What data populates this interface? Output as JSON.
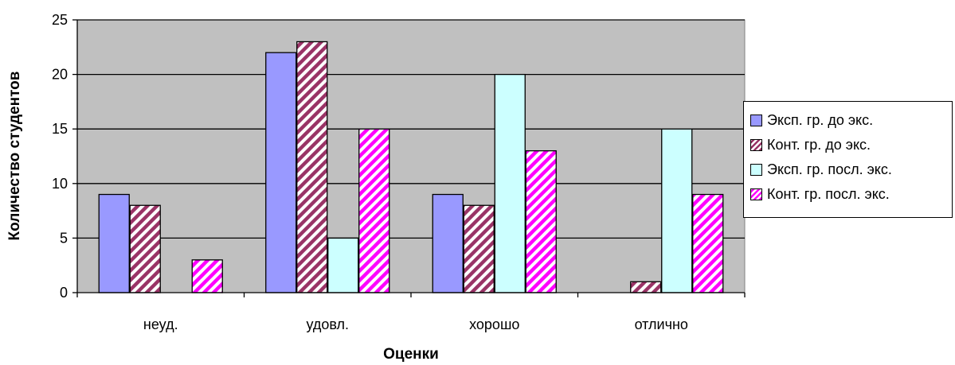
{
  "chart_data": {
    "type": "bar",
    "categories": [
      "неуд.",
      "удовл.",
      "хорошо",
      "отлично"
    ],
    "series": [
      {
        "name": "Эксп. гр. до экс.",
        "values": [
          9,
          22,
          9,
          0
        ],
        "color": "#9999ff",
        "pattern": "solid"
      },
      {
        "name": "Конт. гр. до экс.",
        "values": [
          8,
          23,
          8,
          1
        ],
        "color": "#993366",
        "pattern": "hatch"
      },
      {
        "name": "Эксп. гр. посл. экс.",
        "values": [
          0,
          5,
          20,
          15
        ],
        "color": "#ccffff",
        "pattern": "solid"
      },
      {
        "name": "Конт. гр. посл. экс.",
        "values": [
          3,
          15,
          13,
          9
        ],
        "color": "#ff00ff",
        "pattern": "hatch"
      }
    ],
    "yticks": [
      0,
      5,
      10,
      15,
      20,
      25
    ],
    "ylim": [
      0,
      25
    ],
    "xlabel": "Оценки",
    "ylabel": "Количество студентов",
    "grid": true,
    "plot_background": "#c0c0c0",
    "legend_position": "right"
  }
}
